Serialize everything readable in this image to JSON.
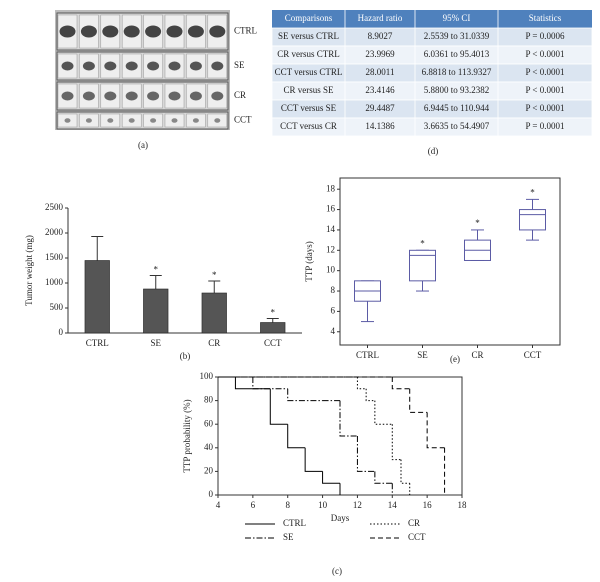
{
  "photo": {
    "row_labels": [
      "CTRL",
      "SE",
      "CR",
      "CCT"
    ],
    "caption": "(a)"
  },
  "table": {
    "header": [
      "Comparisons",
      "Hazard ratio",
      "95% CI",
      "Statistics"
    ],
    "rows": [
      [
        "SE versus CTRL",
        "8.9027",
        "2.5539 to 31.0339",
        "P = 0.0006"
      ],
      [
        "CR versus CTRL",
        "23.9969",
        "6.0361 to 95.4013",
        "P < 0.0001"
      ],
      [
        "CCT versus CTRL",
        "28.0011",
        "6.8818 to 113.9327",
        "P < 0.0001"
      ],
      [
        "CR versus SE",
        "23.4146",
        "5.8800 to 93.2382",
        "P < 0.0001"
      ],
      [
        "CCT versus SE",
        "29.4487",
        "6.9445 to 110.944",
        "P < 0.0001"
      ],
      [
        "CCT versus CR",
        "14.1386",
        "3.6635 to 54.4907",
        "P = 0.0001"
      ]
    ],
    "caption": "(d)"
  },
  "chart_data": [
    {
      "type": "bar",
      "caption": "(b)",
      "ylabel": "Tumor weight (mg)",
      "categories": [
        "CTRL",
        "SE",
        "CR",
        "CCT"
      ],
      "values": [
        1450,
        880,
        800,
        210
      ],
      "errors": [
        480,
        270,
        240,
        80
      ],
      "annotations": [
        null,
        "*",
        "*",
        "*"
      ],
      "color": "#555555",
      "ylim": [
        0,
        2500
      ],
      "yticks": [
        0,
        500,
        1000,
        1500,
        2000,
        2500
      ]
    },
    {
      "type": "box",
      "caption": "(e)",
      "ylabel": "TTP (days)",
      "categories": [
        "CTRL",
        "SE",
        "CR",
        "CCT"
      ],
      "min": [
        5,
        8,
        11,
        13
      ],
      "q1": [
        7,
        9,
        11,
        14
      ],
      "median": [
        8,
        11.5,
        12,
        15.5
      ],
      "q3": [
        9,
        12,
        13,
        16
      ],
      "max": [
        9,
        12,
        14,
        17
      ],
      "annotations": [
        null,
        "*",
        "*",
        "*"
      ],
      "color": "#5b5ba5",
      "ylim": [
        2.7,
        19.1
      ],
      "yticks": [
        4,
        6,
        8,
        10,
        12,
        14,
        16,
        18
      ]
    },
    {
      "type": "step",
      "caption": "(c)",
      "xlabel": "Days",
      "ylabel": "TTP probability (%)",
      "series": [
        {
          "name": "CTRL",
          "color": "#000000",
          "dash": "none",
          "x": [
            4,
            5,
            7,
            8,
            9,
            10,
            11
          ],
          "values": [
            100,
            90,
            60,
            40,
            20,
            10,
            0
          ]
        },
        {
          "name": "CR",
          "color": "#000000",
          "dash": "1.5 2",
          "x": [
            4,
            12,
            12.5,
            13,
            14,
            14.5,
            15
          ],
          "values": [
            100,
            90,
            80,
            60,
            30,
            10,
            0
          ]
        },
        {
          "name": "SE",
          "color": "#000000",
          "dash": "6 2 1.5 2",
          "x": [
            4,
            6,
            8,
            10,
            11,
            12,
            13,
            14
          ],
          "values": [
            100,
            90,
            80,
            80,
            50,
            20,
            10,
            0
          ]
        },
        {
          "name": "CCT",
          "color": "#000000",
          "dash": "5 3",
          "x": [
            4,
            14,
            15,
            16,
            17
          ],
          "values": [
            100,
            90,
            70,
            40,
            0
          ]
        }
      ],
      "xlim": [
        4,
        18
      ],
      "ylim": [
        0,
        100
      ],
      "xticks": [
        4,
        6,
        8,
        10,
        12,
        14,
        16,
        18
      ],
      "yticks": [
        0,
        20,
        40,
        60,
        80,
        100
      ]
    }
  ]
}
